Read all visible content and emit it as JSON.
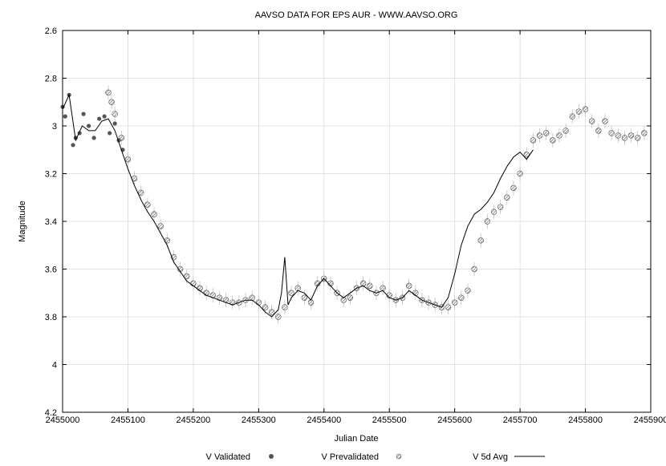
{
  "chart_data": {
    "type": "scatter",
    "title": "AAVSO DATA FOR EPS AUR - WWW.AAVSO.ORG",
    "xlabel": "Julian Date",
    "ylabel": "Magnitude",
    "xlim": [
      2455000,
      2455900
    ],
    "ylim": [
      4.2,
      2.6
    ],
    "y_inverted": true,
    "grid": true,
    "x_ticks": [
      2455000,
      2455100,
      2455200,
      2455300,
      2455400,
      2455500,
      2455600,
      2455700,
      2455800,
      2455900
    ],
    "x_tick_labels": [
      "2455000",
      "2455100",
      "2455200",
      "2455300",
      "2455400",
      "2455500",
      "2455600",
      "2455700",
      "2455800",
      "2455900"
    ],
    "y_ticks": [
      2.6,
      2.8,
      3.0,
      3.2,
      3.4,
      3.6,
      3.8,
      4.0,
      4.2
    ],
    "y_tick_labels": [
      "2.6",
      "2.8",
      "3",
      "3.2",
      "3.4",
      "3.6",
      "3.8",
      "4",
      "4.2"
    ],
    "legend_placement": "bottom",
    "colors": {
      "validated": "#555555",
      "prevalidated": "#777777",
      "avg": "#000000",
      "error": "#b8b8b8",
      "grid": "#d9d9d9"
    },
    "series": [
      {
        "name": "V Validated",
        "marker": "filled-circle",
        "x": [
          2455000,
          2455004,
          2455010,
          2455016,
          2455020,
          2455026,
          2455032,
          2455040,
          2455048,
          2455056,
          2455064,
          2455072,
          2455080,
          2455086,
          2455092
        ],
        "y": [
          2.92,
          2.96,
          2.87,
          3.08,
          3.05,
          3.03,
          2.95,
          3.0,
          3.05,
          2.97,
          2.96,
          3.03,
          2.99,
          3.06,
          3.1
        ]
      },
      {
        "name": "V Prevalidated",
        "marker": "hatched-circle",
        "x": [
          2455070,
          2455075,
          2455080,
          2455090,
          2455100,
          2455110,
          2455120,
          2455130,
          2455140,
          2455150,
          2455160,
          2455170,
          2455180,
          2455190,
          2455200,
          2455210,
          2455220,
          2455230,
          2455240,
          2455250,
          2455260,
          2455270,
          2455280,
          2455290,
          2455300,
          2455310,
          2455320,
          2455330,
          2455340,
          2455350,
          2455360,
          2455370,
          2455380,
          2455390,
          2455400,
          2455410,
          2455420,
          2455430,
          2455440,
          2455450,
          2455460,
          2455470,
          2455480,
          2455490,
          2455500,
          2455510,
          2455520,
          2455530,
          2455540,
          2455550,
          2455560,
          2455570,
          2455580,
          2455590,
          2455600,
          2455610,
          2455620,
          2455630,
          2455640,
          2455650,
          2455660,
          2455670,
          2455680,
          2455690,
          2455700,
          2455710,
          2455720,
          2455730,
          2455740,
          2455750,
          2455760,
          2455770,
          2455780,
          2455790,
          2455800,
          2455810,
          2455820,
          2455830,
          2455840,
          2455850,
          2455860,
          2455870,
          2455880,
          2455890
        ],
        "y": [
          2.86,
          2.9,
          2.95,
          3.05,
          3.14,
          3.22,
          3.28,
          3.33,
          3.37,
          3.42,
          3.48,
          3.55,
          3.6,
          3.63,
          3.66,
          3.68,
          3.7,
          3.71,
          3.72,
          3.73,
          3.74,
          3.74,
          3.73,
          3.72,
          3.74,
          3.76,
          3.78,
          3.8,
          3.76,
          3.7,
          3.68,
          3.72,
          3.74,
          3.66,
          3.64,
          3.66,
          3.7,
          3.73,
          3.72,
          3.68,
          3.66,
          3.67,
          3.7,
          3.68,
          3.71,
          3.73,
          3.72,
          3.67,
          3.7,
          3.73,
          3.74,
          3.75,
          3.76,
          3.76,
          3.74,
          3.72,
          3.69,
          3.6,
          3.48,
          3.4,
          3.36,
          3.34,
          3.3,
          3.26,
          3.2,
          3.12,
          3.06,
          3.04,
          3.03,
          3.06,
          3.04,
          3.02,
          2.96,
          2.94,
          2.93,
          2.98,
          3.02,
          2.98,
          3.03,
          3.04,
          3.05,
          3.04,
          3.05,
          3.03
        ]
      },
      {
        "name": "V 5d Avg",
        "marker": "line",
        "x": [
          2455000,
          2455010,
          2455020,
          2455030,
          2455040,
          2455050,
          2455060,
          2455070,
          2455080,
          2455090,
          2455100,
          2455110,
          2455120,
          2455130,
          2455140,
          2455150,
          2455160,
          2455170,
          2455180,
          2455190,
          2455200,
          2455210,
          2455220,
          2455230,
          2455240,
          2455250,
          2455260,
          2455270,
          2455280,
          2455290,
          2455300,
          2455310,
          2455320,
          2455330,
          2455335,
          2455340,
          2455345,
          2455350,
          2455360,
          2455370,
          2455380,
          2455390,
          2455400,
          2455410,
          2455420,
          2455430,
          2455440,
          2455450,
          2455460,
          2455470,
          2455480,
          2455490,
          2455500,
          2455510,
          2455520,
          2455530,
          2455540,
          2455550,
          2455560,
          2455570,
          2455580,
          2455590,
          2455600,
          2455610,
          2455620,
          2455630,
          2455640,
          2455650,
          2455660,
          2455670,
          2455680,
          2455690,
          2455700,
          2455710,
          2455720
        ],
        "y": [
          2.93,
          2.87,
          3.06,
          3.0,
          3.02,
          3.02,
          2.98,
          2.97,
          3.02,
          3.1,
          3.18,
          3.25,
          3.31,
          3.36,
          3.4,
          3.45,
          3.5,
          3.57,
          3.61,
          3.65,
          3.67,
          3.69,
          3.71,
          3.72,
          3.73,
          3.74,
          3.75,
          3.74,
          3.73,
          3.73,
          3.75,
          3.78,
          3.8,
          3.77,
          3.7,
          3.55,
          3.75,
          3.72,
          3.69,
          3.7,
          3.73,
          3.67,
          3.64,
          3.67,
          3.7,
          3.72,
          3.7,
          3.68,
          3.67,
          3.69,
          3.7,
          3.69,
          3.72,
          3.73,
          3.72,
          3.69,
          3.71,
          3.73,
          3.74,
          3.75,
          3.76,
          3.72,
          3.62,
          3.5,
          3.42,
          3.37,
          3.35,
          3.32,
          3.28,
          3.22,
          3.17,
          3.13,
          3.11,
          3.14,
          3.1
        ]
      }
    ]
  }
}
